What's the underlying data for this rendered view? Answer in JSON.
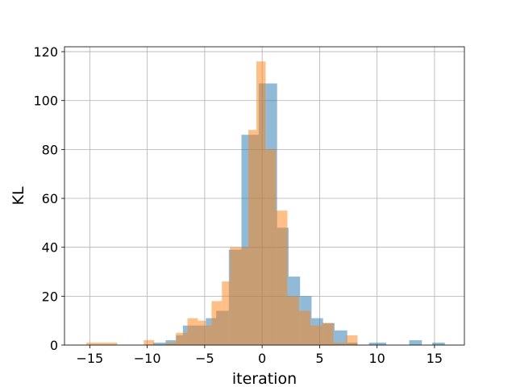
{
  "chart_data": {
    "type": "histogram",
    "xlabel": "iteration",
    "ylabel": "KL",
    "xlim": [
      -17.2,
      17.6
    ],
    "ylim": [
      0,
      122
    ],
    "grid": true,
    "xticks": [
      -15,
      -10,
      -5,
      0,
      5,
      10,
      15
    ],
    "yticks": [
      0,
      20,
      40,
      60,
      80,
      100,
      120
    ],
    "series": [
      {
        "color": "#1f77b4",
        "bins": [
          [
            -9.5,
            -8.4,
            1
          ],
          [
            -8.4,
            -7.5,
            2
          ],
          [
            -7.5,
            -6.9,
            4
          ],
          [
            -6.9,
            -6.4,
            8
          ],
          [
            -6.4,
            -4.9,
            8
          ],
          [
            -4.9,
            -4.0,
            11
          ],
          [
            -4.0,
            -2.9,
            14
          ],
          [
            -2.9,
            -1.8,
            39
          ],
          [
            -1.8,
            -1.0,
            86
          ],
          [
            -1.0,
            -0.3,
            86
          ],
          [
            -0.3,
            0.4,
            107
          ],
          [
            0.4,
            1.3,
            107
          ],
          [
            1.3,
            2.3,
            48
          ],
          [
            2.3,
            3.3,
            28
          ],
          [
            3.3,
            4.3,
            20
          ],
          [
            4.3,
            5.3,
            11
          ],
          [
            5.3,
            6.3,
            9
          ],
          [
            6.3,
            7.4,
            6
          ],
          [
            7.4,
            8.3,
            1
          ],
          [
            9.3,
            10.8,
            1
          ],
          [
            12.8,
            13.9,
            2
          ],
          [
            14.8,
            15.9,
            1
          ]
        ]
      },
      {
        "color": "#ff7f0e",
        "bins": [
          [
            -15.3,
            -12.6,
            1
          ],
          [
            -10.3,
            -9.4,
            2
          ],
          [
            -9.4,
            -8.4,
            0
          ],
          [
            -8.4,
            -7.5,
            1
          ],
          [
            -7.5,
            -6.5,
            5
          ],
          [
            -6.5,
            -5.6,
            11
          ],
          [
            -5.6,
            -4.9,
            10
          ],
          [
            -4.9,
            -4.4,
            8
          ],
          [
            -4.4,
            -3.5,
            18
          ],
          [
            -3.5,
            -2.8,
            26
          ],
          [
            -2.8,
            -1.9,
            40
          ],
          [
            -1.9,
            -1.2,
            40
          ],
          [
            -1.2,
            -0.5,
            88
          ],
          [
            -0.5,
            0.3,
            116
          ],
          [
            0.3,
            1.2,
            80
          ],
          [
            1.2,
            2.2,
            55
          ],
          [
            2.2,
            3.2,
            20
          ],
          [
            3.2,
            4.2,
            14
          ],
          [
            4.2,
            5.2,
            8
          ],
          [
            5.2,
            6.2,
            9
          ],
          [
            6.2,
            7.3,
            1
          ],
          [
            7.3,
            8.3,
            4
          ]
        ]
      }
    ]
  }
}
